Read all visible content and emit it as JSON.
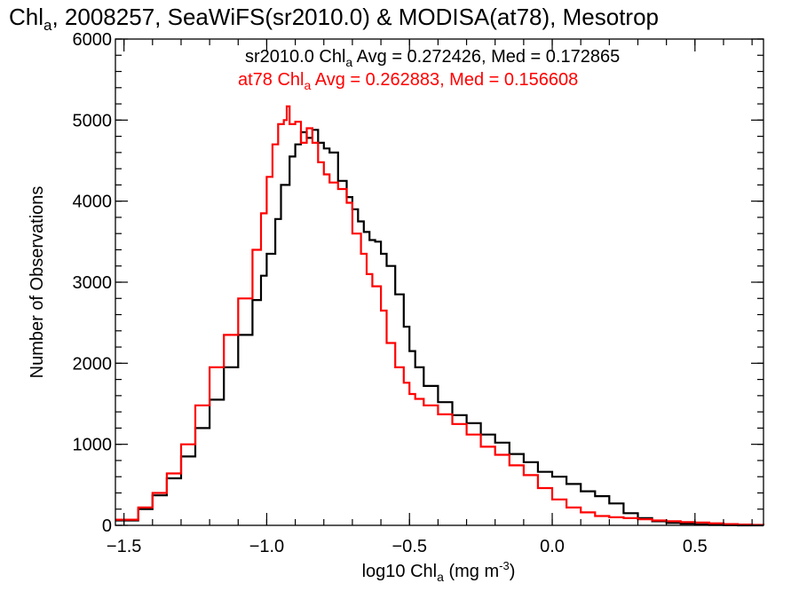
{
  "chart_data": {
    "type": "line",
    "step": true,
    "title": {
      "pre": "Chl",
      "sub": "a",
      "post": ", 2008257, SeaWiFS(sr2010.0) & MODISA(at78), Mesotrop"
    },
    "xlabel": {
      "pre": "log10 Chl",
      "sub": "a",
      "mid": " (mg m",
      "sup": "-3",
      "post": ")"
    },
    "ylabel": "Number of Observations",
    "xlim": [
      -1.53,
      0.74
    ],
    "ylim": [
      0,
      6000
    ],
    "x_ticks": [
      {
        "value": -1.5,
        "label": "−1.5"
      },
      {
        "value": -1.0,
        "label": "−1.0"
      },
      {
        "value": -0.5,
        "label": "−0.5"
      },
      {
        "value": 0.0,
        "label": "0.0"
      },
      {
        "value": 0.5,
        "label": "0.5"
      }
    ],
    "x_minor_step": 0.1,
    "y_ticks": [
      {
        "value": 0,
        "label": "0"
      },
      {
        "value": 1000,
        "label": "1000"
      },
      {
        "value": 2000,
        "label": "2000"
      },
      {
        "value": 3000,
        "label": "3000"
      },
      {
        "value": 4000,
        "label": "4000"
      },
      {
        "value": 5000,
        "label": "5000"
      },
      {
        "value": 6000,
        "label": "6000"
      }
    ],
    "y_minor_step": 200,
    "annotations": [
      {
        "pre": "sr2010.0 Chl",
        "sub": "a",
        "post": " Avg = 0.272426, Med = 0.172865",
        "color": "#000000"
      },
      {
        "pre": "at78 Chl",
        "sub": "a",
        "post": " Avg = 0.262883, Med = 0.156608",
        "color": "#ff0000"
      }
    ],
    "series": [
      {
        "name": "sr2010.0",
        "color": "#000000",
        "x": [
          -1.53,
          -1.45,
          -1.4,
          -1.35,
          -1.3,
          -1.25,
          -1.2,
          -1.15,
          -1.1,
          -1.05,
          -1.02,
          -1.0,
          -0.97,
          -0.95,
          -0.92,
          -0.9,
          -0.88,
          -0.86,
          -0.84,
          -0.82,
          -0.8,
          -0.78,
          -0.75,
          -0.72,
          -0.7,
          -0.68,
          -0.66,
          -0.64,
          -0.62,
          -0.6,
          -0.58,
          -0.55,
          -0.52,
          -0.5,
          -0.48,
          -0.45,
          -0.4,
          -0.35,
          -0.3,
          -0.25,
          -0.2,
          -0.15,
          -0.1,
          -0.05,
          0.0,
          0.05,
          0.1,
          0.15,
          0.2,
          0.25,
          0.3,
          0.35,
          0.4,
          0.45,
          0.5,
          0.55,
          0.6,
          0.65,
          0.7,
          0.74
        ],
        "y": [
          60,
          200,
          370,
          580,
          850,
          1200,
          1550,
          1950,
          2350,
          2780,
          3080,
          3350,
          3780,
          4200,
          4550,
          4700,
          4850,
          4780,
          4880,
          4720,
          4650,
          4600,
          4250,
          4050,
          3900,
          3750,
          3620,
          3520,
          3500,
          3350,
          3200,
          2850,
          2450,
          2150,
          1950,
          1720,
          1520,
          1360,
          1260,
          1120,
          1020,
          880,
          780,
          660,
          600,
          510,
          420,
          360,
          270,
          150,
          90,
          50,
          30,
          20,
          10,
          5,
          2,
          0,
          0,
          0
        ]
      },
      {
        "name": "at78",
        "color": "#ff0000",
        "x": [
          -1.53,
          -1.45,
          -1.4,
          -1.35,
          -1.3,
          -1.25,
          -1.2,
          -1.15,
          -1.1,
          -1.05,
          -1.02,
          -1.0,
          -0.98,
          -0.96,
          -0.94,
          -0.93,
          -0.92,
          -0.9,
          -0.88,
          -0.86,
          -0.84,
          -0.82,
          -0.8,
          -0.78,
          -0.75,
          -0.72,
          -0.7,
          -0.67,
          -0.65,
          -0.63,
          -0.6,
          -0.58,
          -0.55,
          -0.52,
          -0.5,
          -0.48,
          -0.45,
          -0.4,
          -0.35,
          -0.3,
          -0.25,
          -0.2,
          -0.15,
          -0.1,
          -0.05,
          0.0,
          0.05,
          0.1,
          0.15,
          0.2,
          0.25,
          0.3,
          0.35,
          0.4,
          0.45,
          0.5,
          0.55,
          0.6,
          0.65,
          0.7,
          0.74
        ],
        "y": [
          70,
          220,
          400,
          640,
          1000,
          1480,
          1950,
          2350,
          2800,
          3400,
          3850,
          4300,
          4700,
          4950,
          5000,
          5170,
          4950,
          4980,
          4720,
          4900,
          4720,
          4480,
          4330,
          4230,
          4150,
          3980,
          3600,
          3350,
          3100,
          2950,
          2650,
          2250,
          1950,
          1760,
          1620,
          1560,
          1480,
          1370,
          1250,
          1120,
          970,
          870,
          740,
          620,
          460,
          320,
          220,
          160,
          115,
          100,
          90,
          75,
          60,
          50,
          40,
          35,
          25,
          15,
          10,
          5,
          3
        ]
      }
    ]
  }
}
